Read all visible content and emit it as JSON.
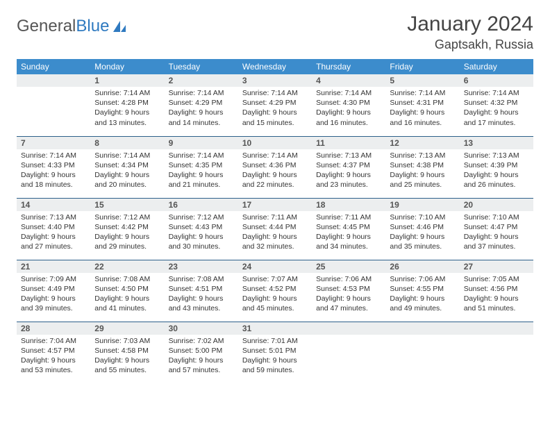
{
  "branding": {
    "word1": "General",
    "word2": "Blue"
  },
  "title": "January 2024",
  "location": "Gaptsakh, Russia",
  "colors": {
    "header_bg": "#3c8ccc",
    "header_fg": "#ffffff",
    "daynum_bg": "#eceeef",
    "row_border": "#2c5f8a",
    "logo_accent": "#2f7ac0"
  },
  "weekdays": [
    "Sunday",
    "Monday",
    "Tuesday",
    "Wednesday",
    "Thursday",
    "Friday",
    "Saturday"
  ],
  "weeks": [
    [
      null,
      {
        "d": "1",
        "sr": "7:14 AM",
        "ss": "4:28 PM",
        "dl": "9 hours and 13 minutes."
      },
      {
        "d": "2",
        "sr": "7:14 AM",
        "ss": "4:29 PM",
        "dl": "9 hours and 14 minutes."
      },
      {
        "d": "3",
        "sr": "7:14 AM",
        "ss": "4:29 PM",
        "dl": "9 hours and 15 minutes."
      },
      {
        "d": "4",
        "sr": "7:14 AM",
        "ss": "4:30 PM",
        "dl": "9 hours and 16 minutes."
      },
      {
        "d": "5",
        "sr": "7:14 AM",
        "ss": "4:31 PM",
        "dl": "9 hours and 16 minutes."
      },
      {
        "d": "6",
        "sr": "7:14 AM",
        "ss": "4:32 PM",
        "dl": "9 hours and 17 minutes."
      }
    ],
    [
      {
        "d": "7",
        "sr": "7:14 AM",
        "ss": "4:33 PM",
        "dl": "9 hours and 18 minutes."
      },
      {
        "d": "8",
        "sr": "7:14 AM",
        "ss": "4:34 PM",
        "dl": "9 hours and 20 minutes."
      },
      {
        "d": "9",
        "sr": "7:14 AM",
        "ss": "4:35 PM",
        "dl": "9 hours and 21 minutes."
      },
      {
        "d": "10",
        "sr": "7:14 AM",
        "ss": "4:36 PM",
        "dl": "9 hours and 22 minutes."
      },
      {
        "d": "11",
        "sr": "7:13 AM",
        "ss": "4:37 PM",
        "dl": "9 hours and 23 minutes."
      },
      {
        "d": "12",
        "sr": "7:13 AM",
        "ss": "4:38 PM",
        "dl": "9 hours and 25 minutes."
      },
      {
        "d": "13",
        "sr": "7:13 AM",
        "ss": "4:39 PM",
        "dl": "9 hours and 26 minutes."
      }
    ],
    [
      {
        "d": "14",
        "sr": "7:13 AM",
        "ss": "4:40 PM",
        "dl": "9 hours and 27 minutes."
      },
      {
        "d": "15",
        "sr": "7:12 AM",
        "ss": "4:42 PM",
        "dl": "9 hours and 29 minutes."
      },
      {
        "d": "16",
        "sr": "7:12 AM",
        "ss": "4:43 PM",
        "dl": "9 hours and 30 minutes."
      },
      {
        "d": "17",
        "sr": "7:11 AM",
        "ss": "4:44 PM",
        "dl": "9 hours and 32 minutes."
      },
      {
        "d": "18",
        "sr": "7:11 AM",
        "ss": "4:45 PM",
        "dl": "9 hours and 34 minutes."
      },
      {
        "d": "19",
        "sr": "7:10 AM",
        "ss": "4:46 PM",
        "dl": "9 hours and 35 minutes."
      },
      {
        "d": "20",
        "sr": "7:10 AM",
        "ss": "4:47 PM",
        "dl": "9 hours and 37 minutes."
      }
    ],
    [
      {
        "d": "21",
        "sr": "7:09 AM",
        "ss": "4:49 PM",
        "dl": "9 hours and 39 minutes."
      },
      {
        "d": "22",
        "sr": "7:08 AM",
        "ss": "4:50 PM",
        "dl": "9 hours and 41 minutes."
      },
      {
        "d": "23",
        "sr": "7:08 AM",
        "ss": "4:51 PM",
        "dl": "9 hours and 43 minutes."
      },
      {
        "d": "24",
        "sr": "7:07 AM",
        "ss": "4:52 PM",
        "dl": "9 hours and 45 minutes."
      },
      {
        "d": "25",
        "sr": "7:06 AM",
        "ss": "4:53 PM",
        "dl": "9 hours and 47 minutes."
      },
      {
        "d": "26",
        "sr": "7:06 AM",
        "ss": "4:55 PM",
        "dl": "9 hours and 49 minutes."
      },
      {
        "d": "27",
        "sr": "7:05 AM",
        "ss": "4:56 PM",
        "dl": "9 hours and 51 minutes."
      }
    ],
    [
      {
        "d": "28",
        "sr": "7:04 AM",
        "ss": "4:57 PM",
        "dl": "9 hours and 53 minutes."
      },
      {
        "d": "29",
        "sr": "7:03 AM",
        "ss": "4:58 PM",
        "dl": "9 hours and 55 minutes."
      },
      {
        "d": "30",
        "sr": "7:02 AM",
        "ss": "5:00 PM",
        "dl": "9 hours and 57 minutes."
      },
      {
        "d": "31",
        "sr": "7:01 AM",
        "ss": "5:01 PM",
        "dl": "9 hours and 59 minutes."
      },
      null,
      null,
      null
    ]
  ],
  "labels": {
    "sunrise": "Sunrise: ",
    "sunset": "Sunset: ",
    "daylight": "Daylight: "
  }
}
